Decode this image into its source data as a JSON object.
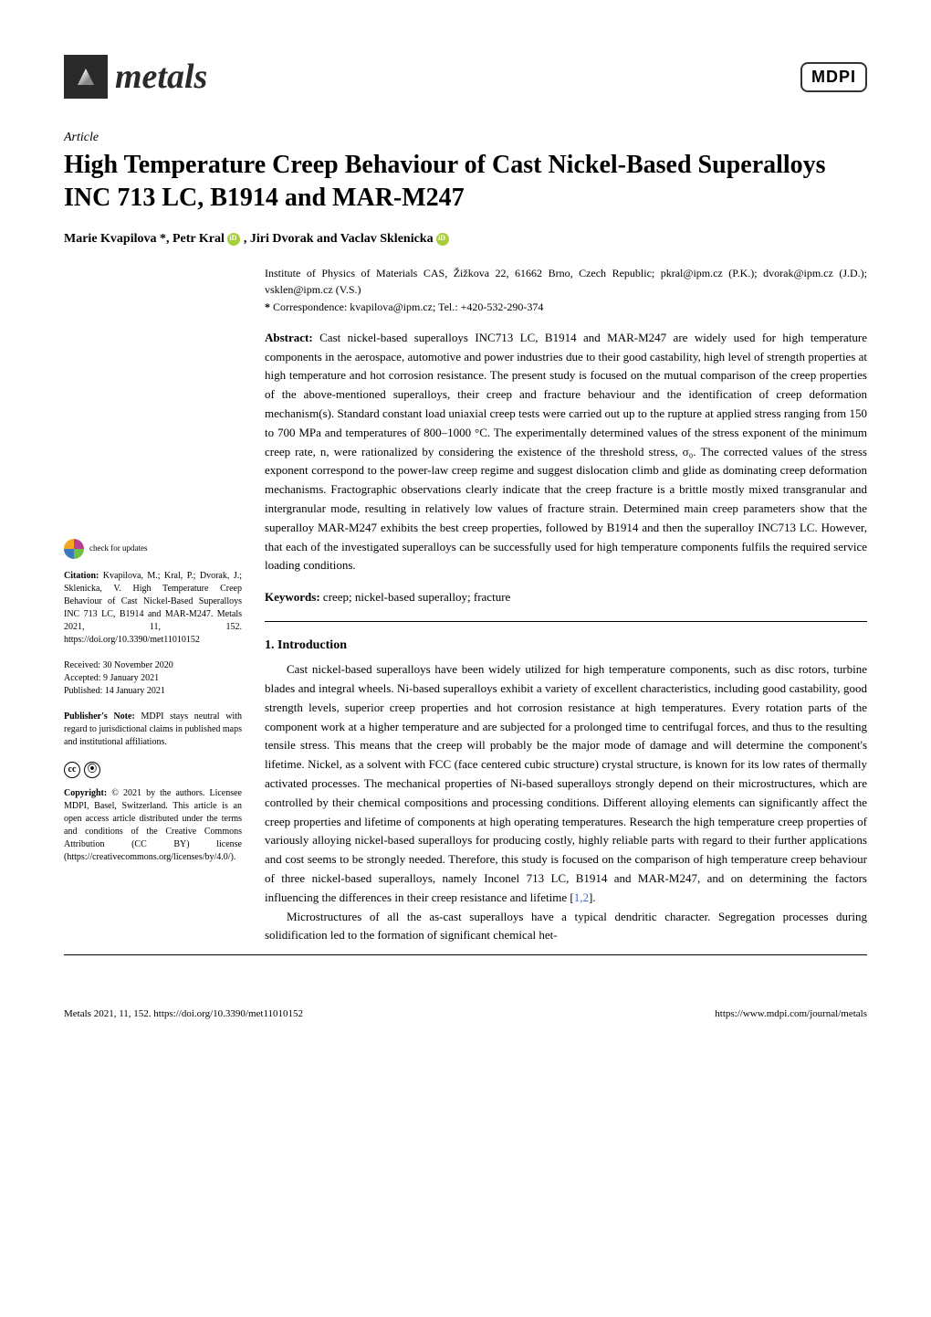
{
  "journal": {
    "name": "metals",
    "publisher": "MDPI"
  },
  "article": {
    "type": "Article",
    "title": "High Temperature Creep Behaviour of Cast Nickel-Based Superalloys INC 713 LC, B1914 and MAR-M247",
    "authors": "Marie Kvapilova *, Petr Kral",
    "authors_mid": ", Jiri Dvorak and Vaclav Sklenicka",
    "affiliation": "Institute of Physics of Materials CAS, Žižkova 22, 61662 Brno, Czech Republic; pkral@ipm.cz (P.K.); dvorak@ipm.cz (J.D.); vsklen@ipm.cz (V.S.)",
    "correspondence_label": "*",
    "correspondence": " Correspondence: kvapilova@ipm.cz; Tel.: +420-532-290-374",
    "abstract_label": "Abstract:",
    "abstract": " Cast nickel-based superalloys INC713 LC, B1914 and MAR-M247 are widely used for high temperature components in the aerospace, automotive and power industries due to their good castability, high level of strength properties at high temperature and hot corrosion resistance. The present study is focused on the mutual comparison of the creep properties of the above-mentioned superalloys, their creep and fracture behaviour and the identification of creep deformation mechanism(s). Standard constant load uniaxial creep tests were carried out up to the rupture at applied stress ranging from 150 to 700 MPa and temperatures of 800–1000 °C. The experimentally determined values of the stress exponent of the minimum creep rate, n, were rationalized by considering the existence of the threshold stress, σ₀. The corrected values of the stress exponent correspond to the power-law creep regime and suggest dislocation climb and glide as dominating creep deformation mechanisms. Fractographic observations clearly indicate that the creep fracture is a brittle mostly mixed transgranular and intergranular mode, resulting in relatively low values of fracture strain. Determined main creep parameters show that the superalloy MAR-M247 exhibits the best creep properties, followed by B1914 and then the superalloy INC713 LC. However, that each of the investigated superalloys can be successfully used for high temperature components fulfils the required service loading conditions.",
    "keywords_label": "Keywords:",
    "keywords": " creep; nickel-based superalloy; fracture"
  },
  "sections": {
    "intro_heading": "1. Introduction",
    "intro_p1": "Cast nickel-based superalloys have been widely utilized for high temperature components, such as disc rotors, turbine blades and integral wheels. Ni-based superalloys exhibit a variety of excellent characteristics, including good castability, good strength levels, superior creep properties and hot corrosion resistance at high temperatures. Every rotation parts of the component work at a higher temperature and are subjected for a prolonged time to centrifugal forces, and thus to the resulting tensile stress. This means that the creep will probably be the major mode of damage and will determine the component's lifetime. Nickel, as a solvent with FCC (face centered cubic structure) crystal structure, is known for its low rates of thermally activated processes. The mechanical properties of Ni-based superalloys strongly depend on their microstructures, which are controlled by their chemical compositions and processing conditions. Different alloying elements can significantly affect the creep properties and lifetime of components at high operating temperatures. Research the high temperature creep properties of variously alloying nickel-based superalloys for producing costly, highly reliable parts with regard to their further applications and cost seems to be strongly needed. Therefore, this study is focused on the comparison of high temperature creep behaviour of three nickel-based superalloys, namely Inconel 713 LC, B1914 and MAR-M247, and on determining the factors influencing the differences in their creep resistance and lifetime [",
    "intro_refs": "1,2",
    "intro_p1_end": "].",
    "intro_p2": "Microstructures of all the as-cast superalloys have a typical dendritic character. Segregation processes during solidification led to the formation of significant chemical het-"
  },
  "sidebar": {
    "check_updates": "check for updates",
    "citation_label": "Citation:",
    "citation": " Kvapilova, M.; Kral, P.; Dvorak, J.; Sklenicka, V. High Temperature Creep Behaviour of Cast Nickel-Based Superalloys INC 713 LC, B1914 and MAR-M247. Metals 2021, 11, 152. https://doi.org/10.3390/met11010152",
    "received": "Received: 30 November 2020",
    "accepted": "Accepted: 9 January 2021",
    "published": "Published: 14 January 2021",
    "publishers_note_label": "Publisher's Note:",
    "publishers_note": " MDPI stays neutral with regard to jurisdictional claims in published maps and institutional affiliations.",
    "copyright_label": "Copyright:",
    "copyright": " © 2021 by the authors. Licensee MDPI, Basel, Switzerland. This article is an open access article distributed under the terms and conditions of the Creative Commons Attribution (CC BY) license (https://creativecommons.org/licenses/by/4.0/).",
    "cc_label": "CC",
    "by_label": "BY"
  },
  "footer": {
    "left": "Metals 2021, 11, 152. https://doi.org/10.3390/met11010152",
    "right": "https://www.mdpi.com/journal/metals"
  }
}
